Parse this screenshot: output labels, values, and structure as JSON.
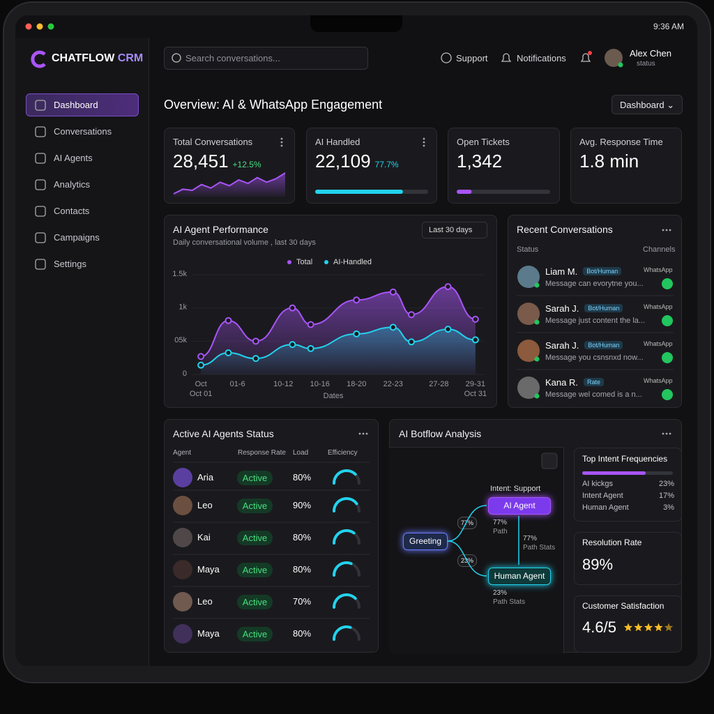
{
  "status_bar": {
    "time": "9:36 AM"
  },
  "brand": {
    "name": "CHATFLOW",
    "suffix": "CRM"
  },
  "search": {
    "placeholder": "Search conversations..."
  },
  "header": {
    "support": "Support",
    "notifications": "Notifications",
    "user": {
      "name": "Alex Chen",
      "status": "status"
    }
  },
  "nav": {
    "items": [
      "Dashboard",
      "Conversations",
      "AI Agents",
      "Analytics",
      "Contacts",
      "Campaigns",
      "Settings"
    ],
    "active": 0
  },
  "page": {
    "title": "Overview: AI & WhatsApp Engagement",
    "view": "Dashboard"
  },
  "kpis": [
    {
      "label": "Total Conversations",
      "value": "28,451",
      "delta": "+12.5%",
      "sparkline": [
        10,
        14,
        13,
        18,
        15,
        20,
        17,
        22,
        19,
        24,
        20,
        23,
        28
      ]
    },
    {
      "label": "AI Handled",
      "value": "22,109",
      "delta": "77.7%",
      "progress": 77.7
    },
    {
      "label": "Open Tickets",
      "value": "1,342",
      "progress": 16
    },
    {
      "label": "Avg. Response Time",
      "value": "1.8 min"
    }
  ],
  "performance": {
    "title": "AI Agent Performance",
    "subtitle": "Daily conversational volume , last 30 days",
    "range": "Last 30 days",
    "chart": {
      "type": "line",
      "x": [
        1,
        4,
        7,
        11,
        13,
        18,
        22,
        24,
        28,
        31
      ],
      "xlim": [
        0,
        32
      ],
      "xticks": [
        {
          "value": 1,
          "label": "Oct"
        },
        {
          "value": 5,
          "label": "01-6"
        },
        {
          "value": 10,
          "label": "10-12"
        },
        {
          "value": 14,
          "label": "10-16"
        },
        {
          "value": 18,
          "label": "18-20"
        },
        {
          "value": 22,
          "label": "22-23"
        },
        {
          "value": 27,
          "label": "27-28"
        },
        {
          "value": 31,
          "label": "29-31"
        }
      ],
      "x_start": "Oct 01",
      "x_end": "Oct 31",
      "xlabel": "Dates",
      "ylim": [
        0,
        1500
      ],
      "yticks": [
        0,
        {
          "value": 500,
          "label": "05k"
        },
        {
          "value": 1000,
          "label": "1k"
        },
        {
          "value": 1500,
          "label": "1.5k"
        }
      ],
      "series": [
        {
          "name": "Total",
          "color": "#a855f7",
          "values": [
            270,
            810,
            500,
            1000,
            750,
            1120,
            1240,
            900,
            1320,
            830
          ]
        },
        {
          "name": "AI-Handled",
          "color": "#22d3ee",
          "values": [
            140,
            325,
            240,
            450,
            390,
            610,
            710,
            490,
            680,
            520
          ]
        }
      ]
    }
  },
  "recent": {
    "title": "Recent Conversations",
    "status_header": "Status",
    "channels_header": "Channels",
    "items": [
      {
        "name": "Liam M.",
        "tag": "Bot/Human",
        "message": "Message can evorytne you...",
        "channel": "WhatsApp"
      },
      {
        "name": "Sarah J.",
        "tag": "Bot/Human",
        "message": "Message just content the la...",
        "channel": "WhatsApp"
      },
      {
        "name": "Sarah J.",
        "tag": "Bot/Human",
        "message": "Message you csnsnxd now...",
        "channel": "WhatsApp"
      },
      {
        "name": "Kana R.",
        "tag": "Rate",
        "message": "Message wel comed is a n...",
        "channel": "WhatsApp"
      }
    ]
  },
  "agents": {
    "title": "Active AI Agents Status",
    "headers": [
      "Agent",
      "Response Rate",
      "Load",
      "Efficiency"
    ],
    "rows": [
      {
        "name": "Aria",
        "status": "Active",
        "load": "80%",
        "efficiency": 75
      },
      {
        "name": "Leo",
        "status": "Active",
        "load": "90%",
        "efficiency": 80
      },
      {
        "name": "Kai",
        "status": "Active",
        "load": "80%",
        "efficiency": 70
      },
      {
        "name": "Maya",
        "status": "Active",
        "load": "80%",
        "efficiency": 62
      },
      {
        "name": "Leo",
        "status": "Active",
        "load": "70%",
        "efficiency": 75
      },
      {
        "name": "Maya",
        "status": "Active",
        "load": "80%",
        "efficiency": 60
      }
    ]
  },
  "botflow": {
    "title": "AI Botflow Analysis",
    "intent": "Intent: Support",
    "nodes": [
      "Greeting",
      "AI Agent",
      "Human Agent"
    ],
    "edges": [
      {
        "badge": "77%",
        "value": "77%",
        "caption": "Path"
      },
      {
        "badge": "23%",
        "value": "23%",
        "caption": "Path Stats"
      },
      {
        "value": "77%",
        "caption": "Path Stats"
      }
    ]
  },
  "intents": {
    "title": "Top Intent Frequencies",
    "bar": 70,
    "items": [
      {
        "label": "AI kickgs",
        "value": "23%"
      },
      {
        "label": "Intent Agent",
        "value": "17%"
      },
      {
        "label": "Human Agent",
        "value": "3%"
      }
    ]
  },
  "resolution": {
    "label": "Resolution Rate",
    "value": "89%"
  },
  "satisfaction": {
    "label": "Customer Satisfaction",
    "value": "4.6/5",
    "stars": 4.6
  }
}
